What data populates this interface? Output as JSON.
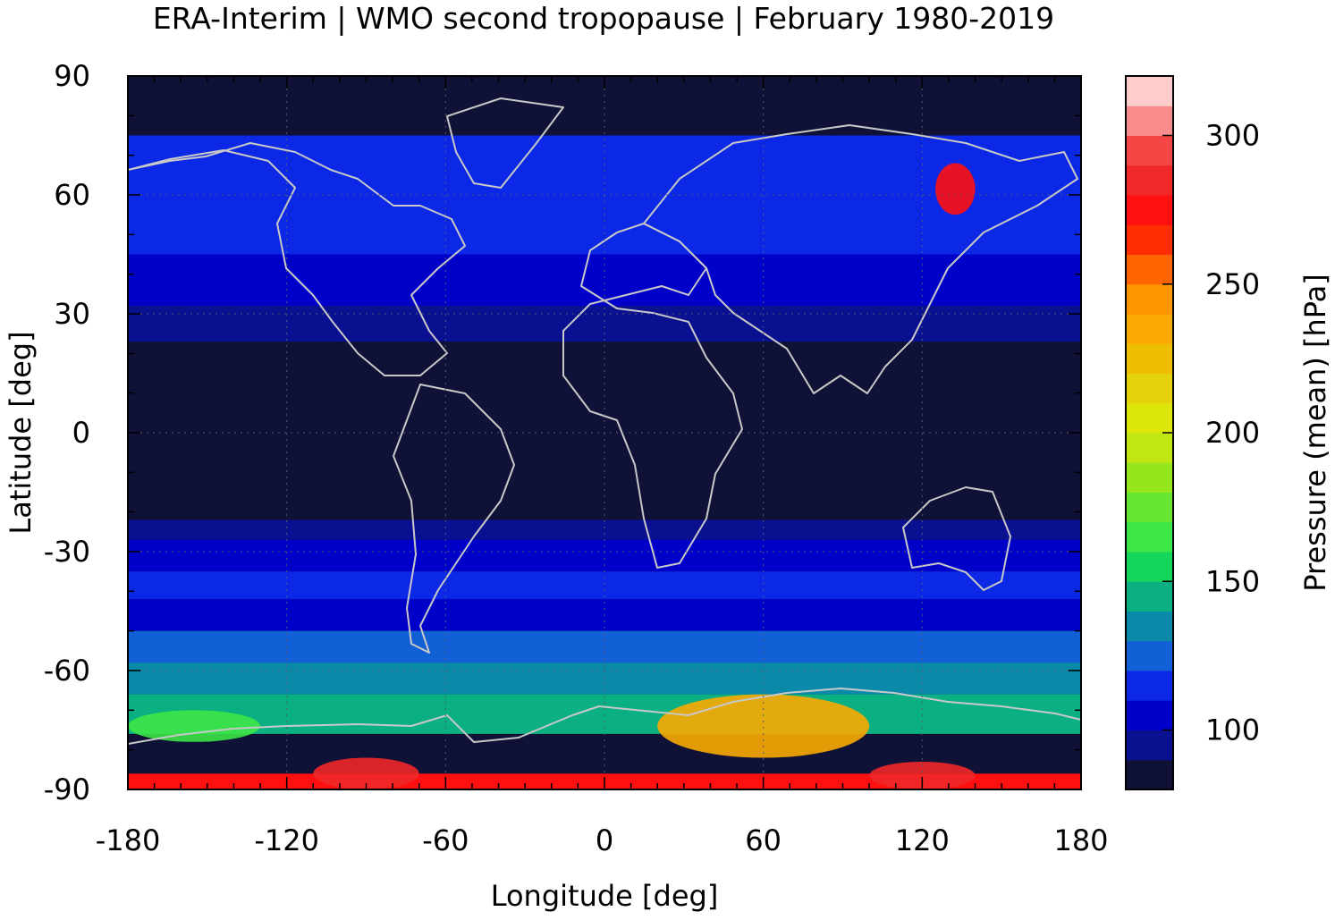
{
  "chart_data": {
    "type": "heatmap",
    "title": "ERA-Interim | WMO second tropopause | February 1980-2019",
    "xlabel": "Longitude [deg]",
    "ylabel": "Latitude [deg]",
    "xlim": [
      -180,
      180
    ],
    "ylim": [
      -90,
      90
    ],
    "x_ticks": [
      -180,
      -120,
      -60,
      0,
      60,
      120,
      180
    ],
    "y_ticks": [
      90,
      60,
      30,
      0,
      -30,
      -60,
      -90
    ],
    "grid": true,
    "colorbar": {
      "label": "Pressure (mean) [hPa]",
      "range": [
        80,
        320
      ],
      "ticks": [
        100,
        150,
        200,
        250,
        300
      ],
      "levels": [
        {
          "min": 80,
          "max": 90,
          "color": "#0f1236"
        },
        {
          "min": 90,
          "max": 100,
          "color": "#0a1190"
        },
        {
          "min": 100,
          "max": 110,
          "color": "#0000c8"
        },
        {
          "min": 110,
          "max": 120,
          "color": "#0a28e6"
        },
        {
          "min": 120,
          "max": 130,
          "color": "#1260d6"
        },
        {
          "min": 130,
          "max": 140,
          "color": "#0a8aa8"
        },
        {
          "min": 140,
          "max": 150,
          "color": "#0aaf82"
        },
        {
          "min": 150,
          "max": 160,
          "color": "#14d65a"
        },
        {
          "min": 160,
          "max": 170,
          "color": "#3ce646"
        },
        {
          "min": 170,
          "max": 180,
          "color": "#64e632"
        },
        {
          "min": 180,
          "max": 190,
          "color": "#96e61e"
        },
        {
          "min": 190,
          "max": 200,
          "color": "#c0e614"
        },
        {
          "min": 200,
          "max": 210,
          "color": "#dce60a"
        },
        {
          "min": 210,
          "max": 220,
          "color": "#e6d20a"
        },
        {
          "min": 220,
          "max": 230,
          "color": "#f0be00"
        },
        {
          "min": 230,
          "max": 240,
          "color": "#faaa00"
        },
        {
          "min": 240,
          "max": 250,
          "color": "#ff9600"
        },
        {
          "min": 250,
          "max": 260,
          "color": "#ff6400"
        },
        {
          "min": 260,
          "max": 270,
          "color": "#ff2d00"
        },
        {
          "min": 270,
          "max": 280,
          "color": "#ff1010"
        },
        {
          "min": 280,
          "max": 290,
          "color": "#f02828"
        },
        {
          "min": 290,
          "max": 300,
          "color": "#f54646"
        },
        {
          "min": 300,
          "max": 310,
          "color": "#f88c8c"
        },
        {
          "min": 310,
          "max": 320,
          "color": "#ffcccc"
        }
      ]
    },
    "zonal_bands": [
      {
        "lat": [
          75,
          90
        ],
        "pressure": 85
      },
      {
        "lat": [
          45,
          75
        ],
        "pressure": 115
      },
      {
        "lat": [
          32,
          45
        ],
        "pressure": 105
      },
      {
        "lat": [
          23,
          32
        ],
        "pressure": 95
      },
      {
        "lat": [
          -22,
          23
        ],
        "pressure": 85
      },
      {
        "lat": [
          -27,
          -22
        ],
        "pressure": 95
      },
      {
        "lat": [
          -35,
          -27
        ],
        "pressure": 105
      },
      {
        "lat": [
          -42,
          -35
        ],
        "pressure": 115
      },
      {
        "lat": [
          -50,
          -42
        ],
        "pressure": 108
      },
      {
        "lat": [
          -58,
          -50
        ],
        "pressure": 125
      },
      {
        "lat": [
          -66,
          -58
        ],
        "pressure": 135
      },
      {
        "lat": [
          -76,
          -66
        ],
        "pressure": 145
      },
      {
        "lat": [
          -86,
          -76
        ],
        "pressure": 85
      },
      {
        "lat": [
          -90,
          -86
        ],
        "pressure": 275
      }
    ],
    "features": [
      {
        "name": "antarctic-high-pressure-arc",
        "lon": [
          20,
          100
        ],
        "lat": [
          -82,
          -66
        ],
        "pressure": 230
      },
      {
        "name": "antarctic-green-ring-west",
        "lon": [
          -180,
          -130
        ],
        "lat": [
          -78,
          -70
        ],
        "pressure": 165
      },
      {
        "name": "polar-cap-red-west",
        "lon": [
          -110,
          -70
        ],
        "lat": [
          -90,
          -82
        ],
        "pressure": 280
      },
      {
        "name": "polar-cap-red-east",
        "lon": [
          100,
          140
        ],
        "lat": [
          -90,
          -83
        ],
        "pressure": 280
      },
      {
        "name": "siberian-peak",
        "lon": [
          125,
          140
        ],
        "lat": [
          55,
          68
        ],
        "pressure": 270
      }
    ]
  }
}
